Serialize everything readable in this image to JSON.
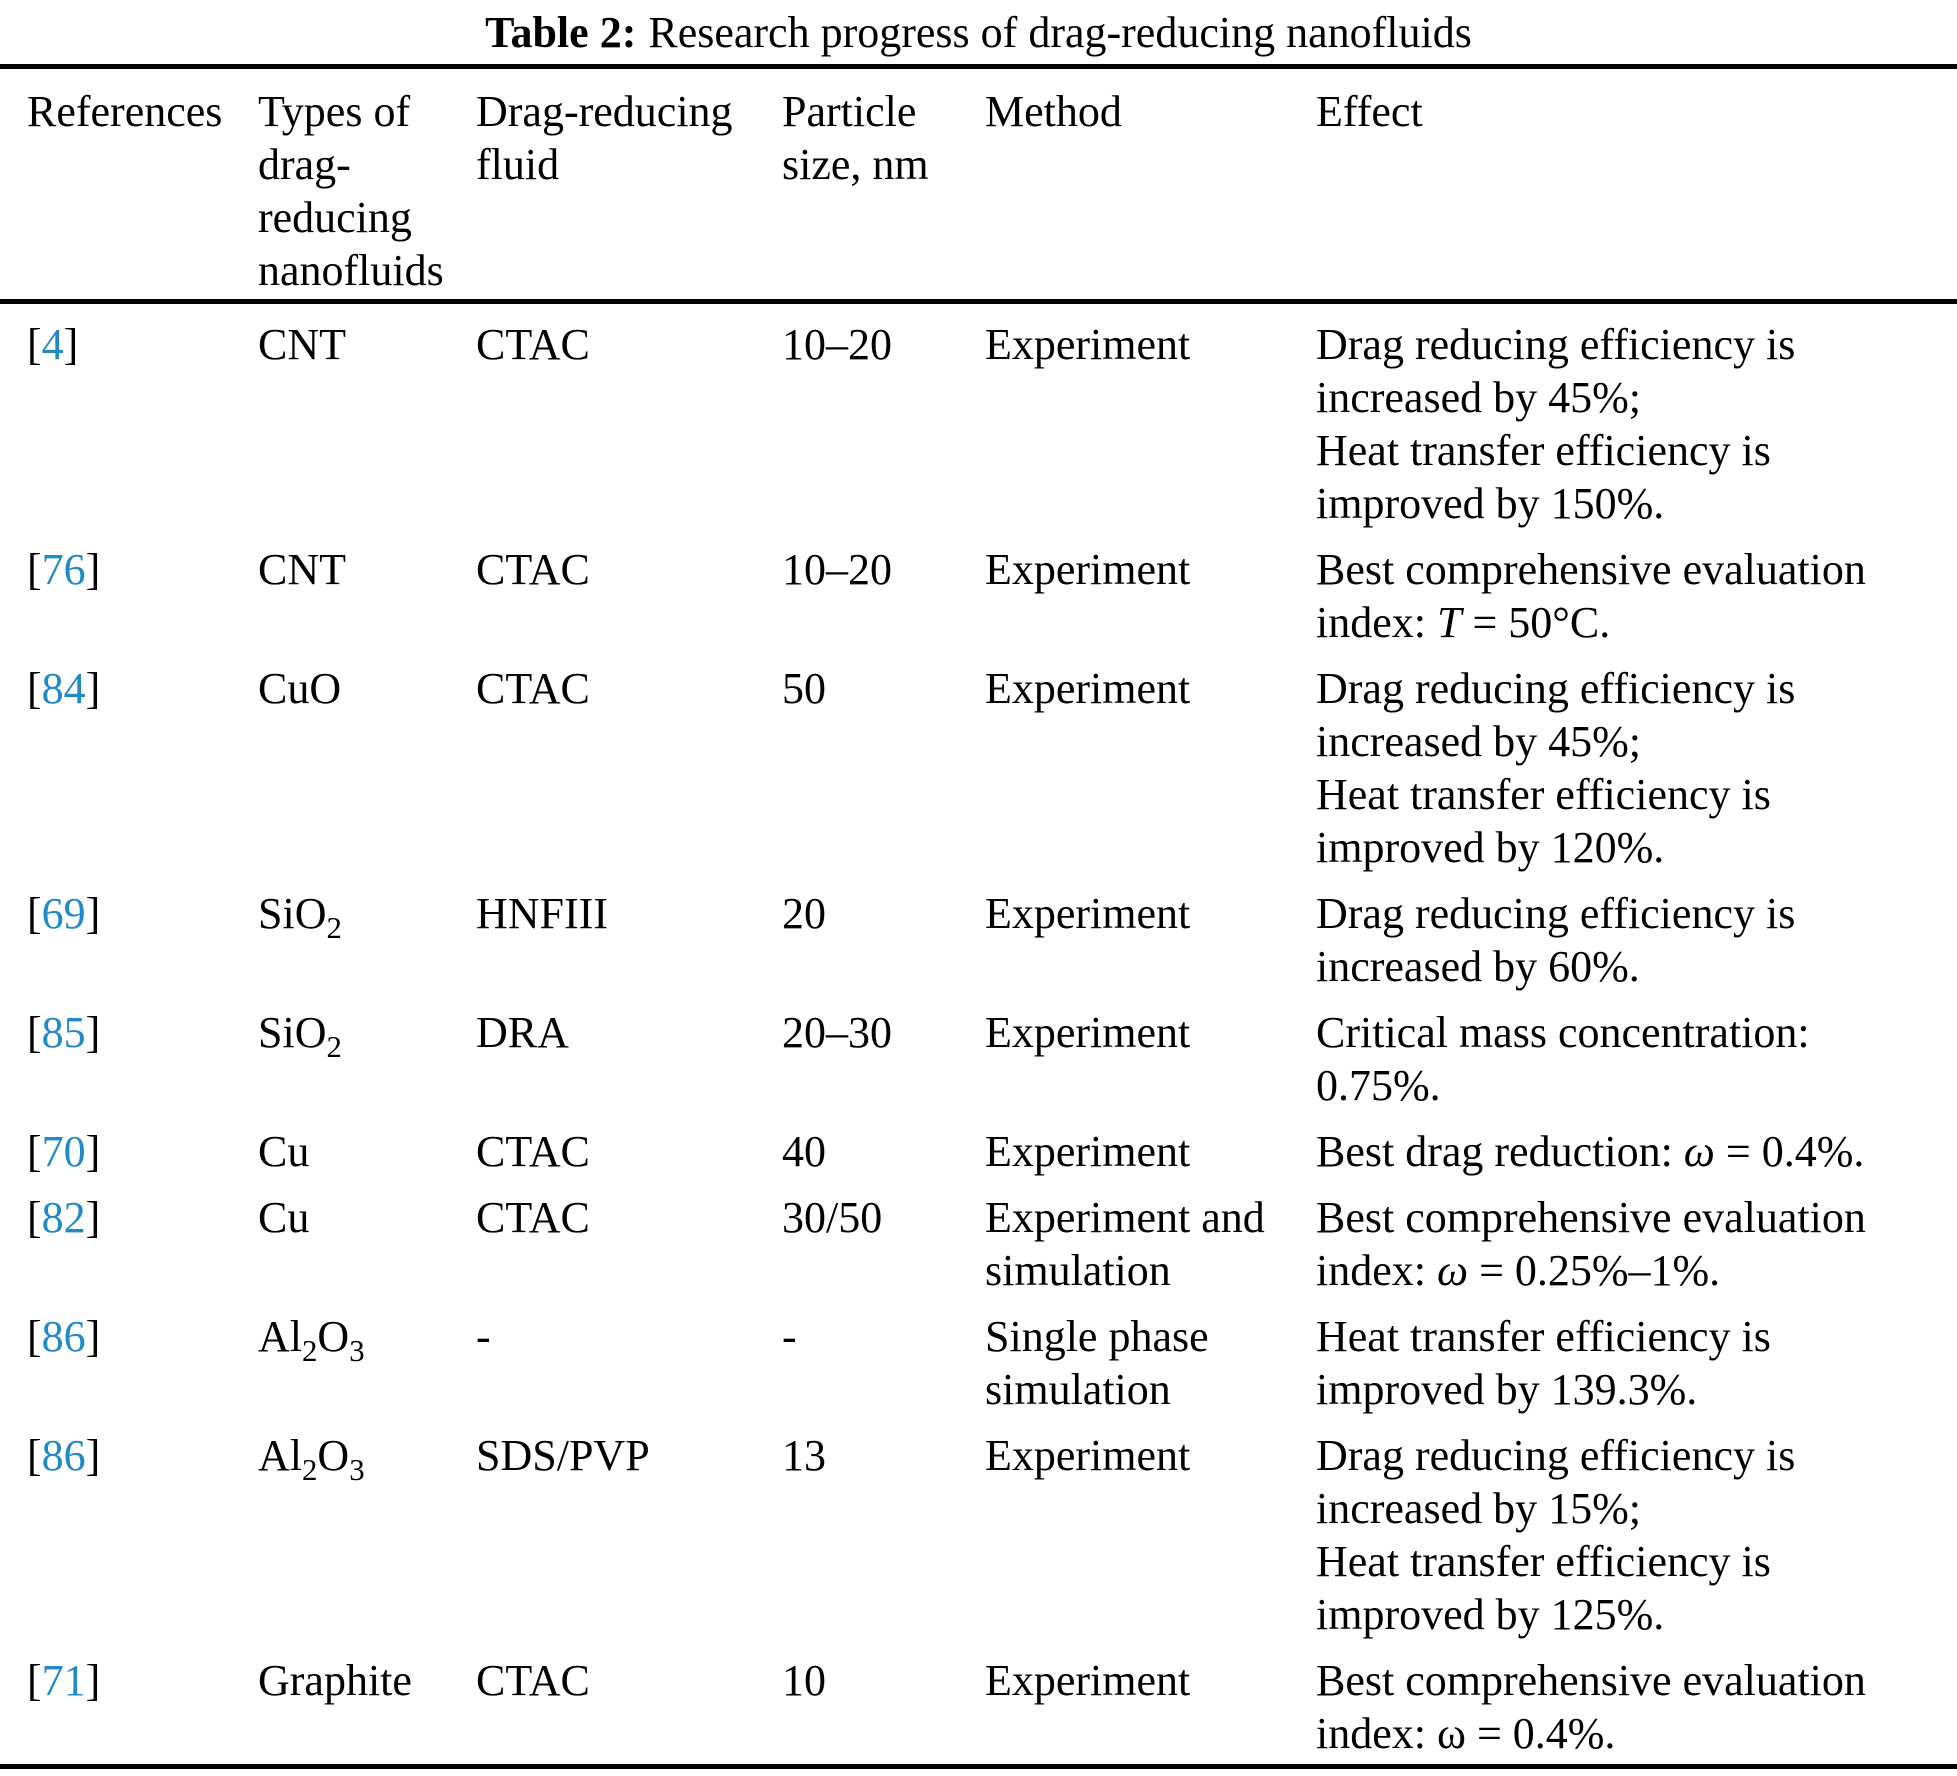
{
  "title": {
    "label": "Table 2:",
    "text": "Research progress of drag-reducing nanofluids"
  },
  "colors": {
    "link": "#1f8ac6",
    "text": "#000000",
    "rule": "#000000"
  },
  "table": {
    "headers": [
      "References",
      "Types of drag-reducing nanofluids",
      "Drag-reducing fluid",
      "Particle size, nm",
      "Method",
      "Effect"
    ],
    "rows": [
      {
        "ref": "4",
        "type": "CNT",
        "fluid": "CTAC",
        "size": "10–20",
        "method": "Experiment",
        "effect": "Drag reducing efficiency is\nincreased by 45%;\nHeat transfer efficiency is\nimproved by 150%."
      },
      {
        "ref": "76",
        "type": "CNT",
        "fluid": "CTAC",
        "size": "10–20",
        "method": "Experiment",
        "effect": "Best comprehensive evaluation\nindex: *T* = 50°C."
      },
      {
        "ref": "84",
        "type": "CuO",
        "fluid": "CTAC",
        "size": "50",
        "method": "Experiment",
        "effect": "Drag reducing efficiency is\nincreased by 45%;\nHeat transfer efficiency is\nimproved by 120%."
      },
      {
        "ref": "69",
        "type": "SiO~2~",
        "fluid": "HNFIII",
        "size": "20",
        "method": "Experiment",
        "effect": "Drag reducing efficiency is\nincreased by 60%."
      },
      {
        "ref": "85",
        "type": "SiO~2~",
        "fluid": "DRA",
        "size": "20–30",
        "method": "Experiment",
        "effect": "Critical mass concentration:\n0.75%."
      },
      {
        "ref": "70",
        "type": "Cu",
        "fluid": "CTAC",
        "size": "40",
        "method": "Experiment",
        "effect": "Best drag reduction: *ω* = 0.4%."
      },
      {
        "ref": "82",
        "type": "Cu",
        "fluid": "CTAC",
        "size": "30/50",
        "method": "Experiment and\nsimulation",
        "effect": "Best comprehensive evaluation\nindex: *ω* = 0.25%–1%."
      },
      {
        "ref": "86",
        "type": "Al~2~O~3~",
        "fluid": "-",
        "size": "-",
        "method": "Single phase\nsimulation",
        "effect": "Heat transfer efficiency is\nimproved by 139.3%."
      },
      {
        "ref": "86",
        "type": "Al~2~O~3~",
        "fluid": "SDS/PVP",
        "size": "13",
        "method": "Experiment",
        "effect": "Drag reducing efficiency is\nincreased by 15%;\nHeat transfer efficiency is\nimproved by 125%."
      },
      {
        "ref": "71",
        "type": "Graphite",
        "fluid": "CTAC",
        "size": "10",
        "method": "Experiment",
        "effect": "Best comprehensive evaluation\nindex: ω = 0.4%."
      }
    ]
  }
}
